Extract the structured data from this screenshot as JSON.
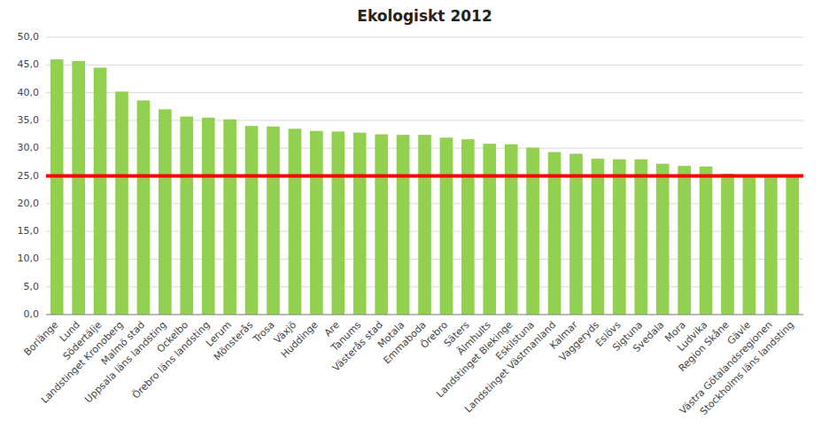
{
  "chart_data": {
    "type": "bar",
    "title": "Ekologiskt 2012",
    "categories": [
      "Borlänge",
      "Lund",
      "Södertälje",
      "Landstinget Kronoberg",
      "Malmö stad",
      "Uppsala läns landsting",
      "Ockelbo",
      "Örebro läns landsting",
      "Lerum",
      "Mönsterås",
      "Trosa",
      "Växjö",
      "Huddinge",
      "Are",
      "Tanums",
      "Västerås stad",
      "Motala",
      "Emmaboda",
      "Örebro",
      "Säters",
      "Älmhults",
      "Landstinget Blekinge",
      "Eskilstuna",
      "Landstinget Västmanland",
      "Kalmar",
      "Vaggeryds",
      "Eslövs",
      "Sigtuna",
      "Svedala",
      "Mora",
      "Ludvika",
      "Region Skåne",
      "Gävle",
      "Västra Götalandsregionen",
      "Stockholms läns landsting"
    ],
    "values": [
      46.0,
      45.7,
      44.5,
      40.2,
      38.6,
      37.0,
      35.7,
      35.5,
      35.2,
      34.0,
      33.9,
      33.5,
      33.1,
      33.0,
      32.8,
      32.5,
      32.4,
      32.4,
      31.9,
      31.6,
      30.8,
      30.7,
      30.1,
      29.3,
      29.0,
      28.1,
      28.0,
      28.0,
      27.2,
      26.8,
      26.7,
      25.4,
      25.1,
      25.0,
      25.0
    ],
    "color": "#92D050",
    "reference_line": {
      "value": 25.0,
      "color": "#FF0000"
    },
    "ylim": [
      0.0,
      50.0
    ],
    "yticks": [
      {
        "value": 0.0,
        "label": "0,0"
      },
      {
        "value": 5.0,
        "label": "5,0"
      },
      {
        "value": 10.0,
        "label": "10,0"
      },
      {
        "value": 15.0,
        "label": "15,0"
      },
      {
        "value": 20.0,
        "label": "20,0"
      },
      {
        "value": 25.0,
        "label": "25,0"
      },
      {
        "value": 30.0,
        "label": "30,0"
      },
      {
        "value": 35.0,
        "label": "35,0"
      },
      {
        "value": 40.0,
        "label": "40,0"
      },
      {
        "value": 45.0,
        "label": "45,0"
      },
      {
        "value": 50.0,
        "label": "50,0"
      }
    ],
    "grid": true
  }
}
